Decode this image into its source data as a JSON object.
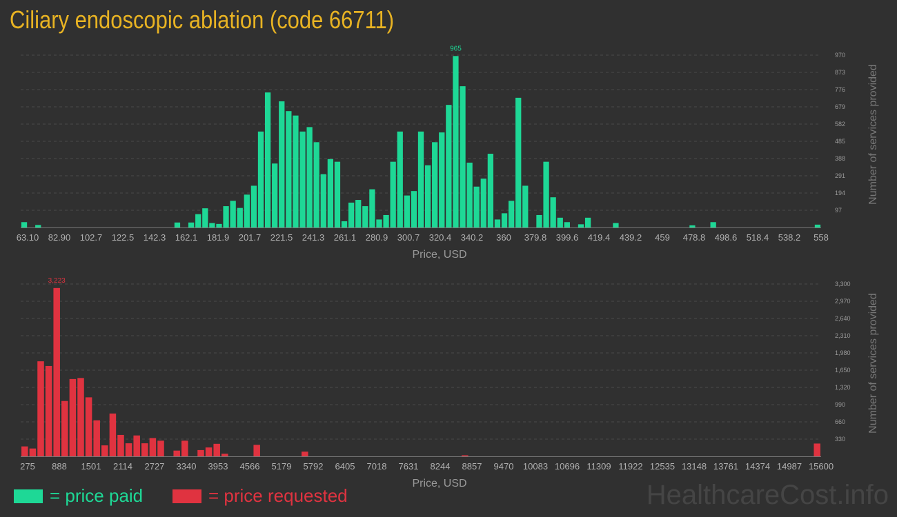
{
  "title": "Ciliary endoscopic ablation (code 66711)",
  "colors": {
    "paid": "#1ed896",
    "requested": "#e03340",
    "title": "#e8b323"
  },
  "legend": {
    "paid": "= price paid",
    "requested": "= price requested"
  },
  "watermark": "HealthcareCost.info",
  "chart_data": [
    {
      "type": "bar",
      "name": "price paid",
      "xlabel": "Price, USD",
      "ylabel": "Number of services provided",
      "max_label": "965",
      "x_ticks": [
        "63.10",
        "82.90",
        "102.7",
        "122.5",
        "142.3",
        "162.1",
        "181.9",
        "201.7",
        "221.5",
        "241.3",
        "261.1",
        "280.9",
        "300.7",
        "320.4",
        "340.2",
        "360",
        "379.8",
        "399.6",
        "419.4",
        "439.2",
        "459",
        "478.8",
        "498.6",
        "518.4",
        "538.2",
        "558"
      ],
      "y_ticks": [
        "97",
        "194",
        "291",
        "388",
        "485",
        "582",
        "679",
        "776",
        "873",
        "970"
      ],
      "ylim": [
        0,
        970
      ],
      "grid": true,
      "values": [
        30,
        0,
        14,
        0,
        0,
        0,
        0,
        0,
        0,
        0,
        0,
        0,
        0,
        0,
        0,
        0,
        0,
        0,
        0,
        0,
        0,
        0,
        28,
        0,
        28,
        75,
        108,
        25,
        20,
        120,
        150,
        110,
        185,
        235,
        540,
        760,
        360,
        710,
        655,
        630,
        540,
        565,
        480,
        300,
        385,
        370,
        35,
        140,
        155,
        120,
        215,
        45,
        70,
        370,
        540,
        180,
        205,
        540,
        350,
        480,
        535,
        690,
        965,
        795,
        365,
        230,
        275,
        415,
        45,
        80,
        150,
        730,
        235,
        0,
        70,
        370,
        170,
        55,
        30,
        0,
        18,
        55,
        0,
        0,
        0,
        25,
        0,
        0,
        0,
        0,
        0,
        0,
        0,
        0,
        0,
        0,
        12,
        0,
        0,
        30,
        0,
        0,
        0,
        0,
        0,
        0,
        0,
        0,
        0,
        0,
        0,
        0,
        0,
        0,
        16
      ]
    },
    {
      "type": "bar",
      "name": "price requested",
      "xlabel": "Price, USD",
      "ylabel": "Number of services provided",
      "max_label": "3,223",
      "x_ticks": [
        "275",
        "888",
        "1501",
        "2114",
        "2727",
        "3340",
        "3953",
        "4566",
        "5179",
        "5792",
        "6405",
        "7018",
        "7631",
        "8244",
        "8857",
        "9470",
        "10083",
        "10696",
        "11309",
        "11922",
        "12535",
        "13148",
        "13761",
        "14374",
        "14987",
        "15600"
      ],
      "y_ticks": [
        "330",
        "660",
        "990",
        "1,320",
        "1,650",
        "1,980",
        "2,310",
        "2,640",
        "2,970",
        "3,300"
      ],
      "ylim": [
        0,
        3300
      ],
      "grid": true,
      "values": [
        190,
        150,
        1820,
        1730,
        3223,
        1060,
        1480,
        1500,
        1130,
        690,
        210,
        820,
        410,
        250,
        400,
        250,
        350,
        300,
        0,
        110,
        300,
        0,
        120,
        170,
        240,
        50,
        0,
        0,
        0,
        220,
        0,
        0,
        0,
        0,
        0,
        90,
        0,
        0,
        0,
        0,
        0,
        0,
        0,
        0,
        0,
        0,
        0,
        0,
        0,
        0,
        0,
        0,
        0,
        0,
        0,
        20,
        0,
        0,
        0,
        0,
        0,
        0,
        0,
        0,
        0,
        0,
        0,
        0,
        0,
        0,
        0,
        0,
        0,
        0,
        0,
        0,
        0,
        0,
        0,
        0,
        0,
        0,
        0,
        0,
        0,
        0,
        0,
        0,
        0,
        0,
        0,
        0,
        0,
        0,
        0,
        0,
        0,
        0,
        0,
        245
      ]
    }
  ]
}
